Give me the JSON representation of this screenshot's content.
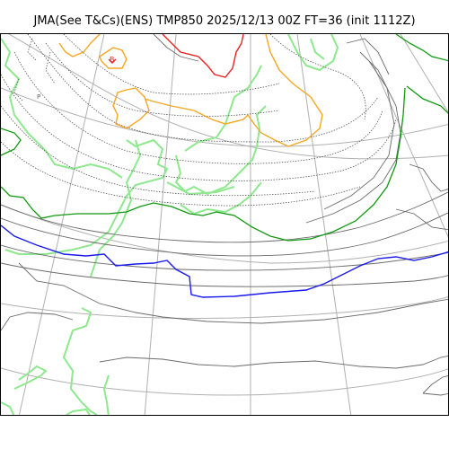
{
  "title": "JMA(See T&Cs)(ENS) TMP850 2025/12/13 00Z FT=36 (init 1112Z)",
  "map_labels": {
    "low_marker": "B",
    "pressure_marker": "P"
  },
  "colors": {
    "graticule": "#b0b0b0",
    "isobar": "#6a6a6a",
    "coastline": "#8ee88e",
    "contour_orange": "#f5a623",
    "contour_red": "#e82020",
    "contour_green": "#119911",
    "contour_blue": "#1a1aee"
  }
}
